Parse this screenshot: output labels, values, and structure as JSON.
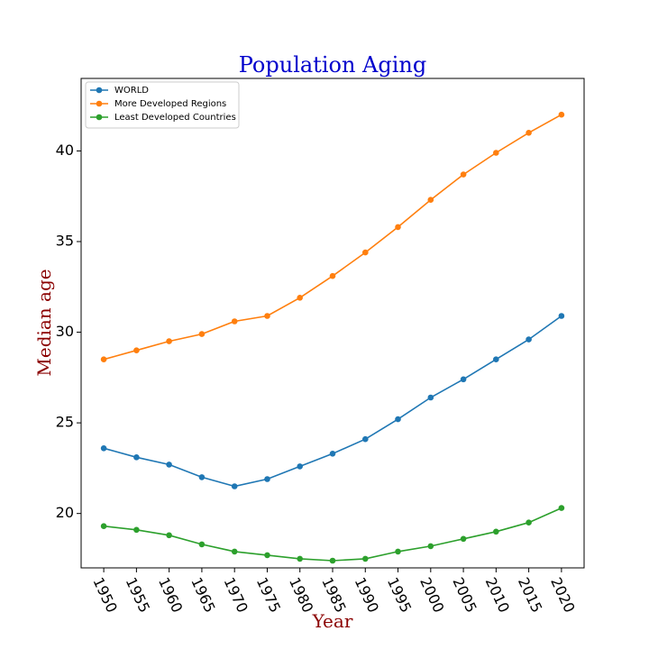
{
  "chart_data": {
    "type": "line",
    "title": "Population Aging",
    "xlabel": "Year",
    "ylabel": "Median age",
    "x": [
      1950,
      1955,
      1960,
      1965,
      1970,
      1975,
      1980,
      1985,
      1990,
      1995,
      2000,
      2005,
      2010,
      2015,
      2020
    ],
    "xticks": [
      "1950",
      "1955",
      "1960",
      "1965",
      "1970",
      "1975",
      "1980",
      "1985",
      "1990",
      "1995",
      "2000",
      "2005",
      "2010",
      "2015",
      "2020"
    ],
    "yticks": [
      20,
      25,
      30,
      35,
      40
    ],
    "ylim": [
      17.0,
      44.0
    ],
    "legend_position": "top-left",
    "grid": false,
    "series": [
      {
        "name": "WORLD",
        "color": "#1f77b4",
        "values": [
          23.6,
          23.1,
          22.7,
          22.0,
          21.5,
          21.9,
          22.6,
          23.3,
          24.1,
          25.2,
          26.4,
          27.4,
          28.5,
          29.6,
          30.9
        ]
      },
      {
        "name": "More Developed Regions",
        "color": "#ff7f0e",
        "values": [
          28.5,
          29.0,
          29.5,
          29.9,
          30.6,
          30.9,
          31.9,
          33.1,
          34.4,
          35.8,
          37.3,
          38.7,
          39.9,
          41.0,
          42.0
        ]
      },
      {
        "name": "Least Developed Countries",
        "color": "#2ca02c",
        "values": [
          19.3,
          19.1,
          18.8,
          18.3,
          17.9,
          17.7,
          17.5,
          17.4,
          17.5,
          17.9,
          18.2,
          18.6,
          19.0,
          19.5,
          20.3
        ]
      }
    ]
  }
}
